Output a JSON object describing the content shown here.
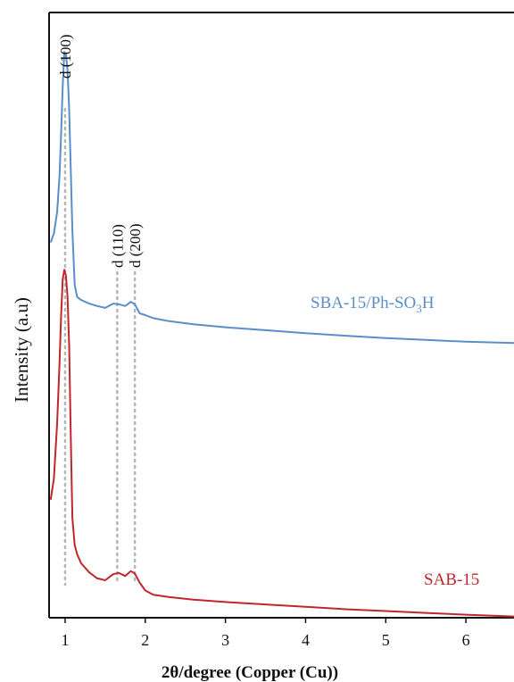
{
  "chart_data": {
    "type": "line",
    "title": "",
    "xlabel": "2θ/degree (Copper (Cu))",
    "ylabel": "Intensity (a.u)",
    "xlim": [
      0.8,
      6.6
    ],
    "ylim": [
      0,
      100
    ],
    "xticks": [
      1,
      2,
      3,
      4,
      5,
      6
    ],
    "xtick_labels": [
      "1",
      "2",
      "3",
      "4",
      "5",
      "6"
    ],
    "y_tick_labels": false,
    "grid": false,
    "legend": "none (labels placed next to curves)",
    "series": [
      {
        "name": "SBA-15/Ph-SO3H",
        "label_main": "SBA-15/Ph-SO",
        "label_sub": "3",
        "label_tail": "H",
        "color": "#5b8ec9",
        "x": [
          0.82,
          0.86,
          0.9,
          0.93,
          0.95,
          0.97,
          0.99,
          1.01,
          1.03,
          1.05,
          1.07,
          1.09,
          1.12,
          1.15,
          1.2,
          1.3,
          1.4,
          1.5,
          1.6,
          1.67,
          1.75,
          1.82,
          1.87,
          1.93,
          2.0,
          2.1,
          2.3,
          2.6,
          3.0,
          3.5,
          4.0,
          4.5,
          5.0,
          5.5,
          6.0,
          6.6
        ],
        "y": [
          62.0,
          63.5,
          67,
          73,
          80,
          88,
          93.5,
          93.0,
          90.5,
          84,
          74,
          64,
          55,
          53,
          52.5,
          51.9,
          51.5,
          51.2,
          51.9,
          51.8,
          51.5,
          52.2,
          51.8,
          50.3,
          50.0,
          49.5,
          49.0,
          48.5,
          48.0,
          47.5,
          47.0,
          46.6,
          46.2,
          45.9,
          45.6,
          45.4
        ]
      },
      {
        "name": "SAB-15",
        "label_main": "SAB-15",
        "label_sub": "",
        "label_tail": "",
        "color": "#c0272d",
        "x": [
          0.82,
          0.86,
          0.9,
          0.93,
          0.95,
          0.97,
          0.99,
          1.01,
          1.03,
          1.05,
          1.07,
          1.09,
          1.12,
          1.15,
          1.2,
          1.3,
          1.4,
          1.5,
          1.6,
          1.67,
          1.75,
          1.82,
          1.87,
          1.93,
          2.0,
          2.1,
          2.3,
          2.6,
          3.0,
          3.5,
          4.0,
          4.5,
          5.0,
          5.5,
          6.0,
          6.6
        ],
        "y": [
          19.5,
          23,
          32,
          42,
          50,
          56,
          57.5,
          56.5,
          53,
          45,
          30,
          16.5,
          12.0,
          10.5,
          9.0,
          7.5,
          6.5,
          6.2,
          7.2,
          7.4,
          6.9,
          7.7,
          7.3,
          5.8,
          4.5,
          3.8,
          3.4,
          3.0,
          2.6,
          2.2,
          1.8,
          1.4,
          1.1,
          0.8,
          0.5,
          0.2
        ]
      }
    ],
    "annotations": [
      {
        "text": "d (100)",
        "x": 1.0
      },
      {
        "text": "d (110)",
        "x": 1.65
      },
      {
        "text": "d (200)",
        "x": 1.87
      }
    ]
  }
}
